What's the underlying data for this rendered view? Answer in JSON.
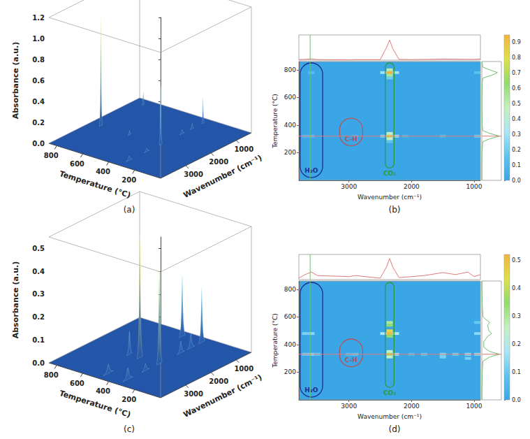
{
  "chart_data": [
    {
      "type": "surface3d",
      "panel": "(a)",
      "x_label": "Wavenumber (cm⁻¹)",
      "y_label": "Temperature (°C)",
      "z_label": "Absorbance (a.u.)",
      "xlim": [
        4000,
        400
      ],
      "xticks": [
        3000,
        2000,
        1000
      ],
      "ylim": [
        0,
        860
      ],
      "yticks": [
        200,
        400,
        600,
        800
      ],
      "zlim": [
        0,
        1.2
      ],
      "zticks": [
        {
          "value": 0,
          "label": "0.0"
        },
        0.2,
        0.4,
        0.6,
        0.8,
        {
          "value": 1,
          "label": "1.0"
        },
        1.2
      ],
      "peaks": {
        "wavenumber": [
          2350,
          2350,
          670,
          670,
          3600,
          2900,
          1500,
          1100,
          2350
        ],
        "temperature": [
          780,
          320,
          320,
          780,
          320,
          320,
          320,
          320,
          560
        ],
        "absorbance": [
          1.05,
          0.55,
          0.25,
          0.12,
          0.04,
          0.03,
          0.04,
          0.05,
          0.04
        ],
        "width": [
          60,
          60,
          50,
          50,
          120,
          100,
          100,
          80,
          60
        ]
      }
    },
    {
      "type": "heatmap",
      "panel": "(b)",
      "x_label": "Wavenumber (cm⁻¹)",
      "y_label": "Temperature (°C)",
      "xlim": [
        3800,
        900
      ],
      "xticks": [
        3000,
        2000,
        1000
      ],
      "ylim": [
        0,
        860
      ],
      "yticks": [
        200,
        400,
        600,
        800
      ],
      "cell_size": [
        100,
        20
      ],
      "cells": {
        "wavenumber": [
          2350,
          2350,
          2350,
          2250,
          2450,
          2350,
          2350,
          2350,
          2350,
          2250,
          2450,
          2350,
          3600,
          3700,
          3600,
          2900,
          2100,
          1500,
          950,
          950
        ],
        "temperature": [
          780,
          760,
          800,
          780,
          780,
          740,
          320,
          300,
          340,
          320,
          320,
          280,
          320,
          320,
          780,
          320,
          320,
          320,
          320,
          780
        ],
        "absorbance": [
          0.95,
          0.55,
          0.5,
          0.3,
          0.3,
          0.2,
          0.8,
          0.45,
          0.45,
          0.3,
          0.25,
          0.15,
          0.15,
          0.12,
          0.12,
          0.08,
          0.1,
          0.12,
          0.2,
          0.15
        ]
      },
      "color_bar": {
        "lim": [
          0,
          0.95
        ],
        "ticks": [
          {
            "value": 0,
            "label": "0.0"
          },
          0.1,
          0.2,
          0.3,
          0.4,
          0.5,
          0.6,
          0.7,
          0.8,
          0.9
        ],
        "colors": [
          "#3aa6e6",
          "#5cc4ef",
          "#a9e6f4",
          "#c6f0c0",
          "#8fdc6a",
          "#dfe04a",
          "#f2b53a"
        ]
      },
      "regions": [
        {
          "label": "H₂O",
          "color": "#1f2d8a",
          "wavenumber": [
            3780,
            3420
          ],
          "temperature": [
            20,
            850
          ]
        },
        {
          "label": "C-H",
          "color": "#b5535a",
          "wavenumber": [
            3150,
            2780
          ],
          "temperature": [
            250,
            450
          ]
        },
        {
          "label": "CO₂",
          "color": "#2e9a3a",
          "wavenumber": [
            2420,
            2280
          ],
          "temperature": [
            90,
            850
          ]
        }
      ],
      "cursor": {
        "wavenumber": 3620,
        "temperature": 320
      },
      "top_profile": {
        "wavenumber": [
          3800,
          3700,
          3600,
          3500,
          3000,
          2900,
          2500,
          2400,
          2350,
          2300,
          2200,
          2000,
          1500,
          1000,
          900
        ],
        "absorbance": [
          0.02,
          0.03,
          0.05,
          0.02,
          0.01,
          0.02,
          0.02,
          0.5,
          0.8,
          0.45,
          0.03,
          0.02,
          0.04,
          0.03,
          0.05
        ],
        "lim": [
          0,
          1
        ],
        "color": "#e07a7a"
      },
      "side_profile": {
        "temperature": [
          0,
          100,
          200,
          280,
          300,
          320,
          340,
          360,
          400,
          500,
          600,
          700,
          740,
          760,
          780,
          800,
          820,
          860
        ],
        "absorbance": [
          0,
          0,
          0.01,
          0.05,
          0.4,
          0.9,
          0.4,
          0.05,
          0.02,
          0.01,
          0.01,
          0.02,
          0.05,
          0.5,
          0.8,
          0.4,
          0.05,
          0.01
        ],
        "lim": [
          0,
          1
        ],
        "color": "#6cc06c"
      }
    },
    {
      "type": "surface3d",
      "panel": "(c)",
      "x_label": "Wavenumber (cm⁻¹)",
      "y_label": "Temperature (°C)",
      "z_label": "Absorbance (a.u.)",
      "xlim": [
        4000,
        400
      ],
      "xticks": [
        3000,
        2000,
        1000
      ],
      "ylim": [
        0,
        860
      ],
      "yticks": [
        200,
        400,
        600,
        800
      ],
      "zlim": [
        0,
        0.55
      ],
      "zticks": [
        {
          "value": 0,
          "label": "0.0"
        },
        0.1,
        0.2,
        0.3,
        0.4,
        0.5
      ],
      "peaks": {
        "wavenumber": [
          2350,
          2350,
          670,
          670,
          3600,
          3600,
          2900,
          1500,
          1100,
          2350
        ],
        "temperature": [
          480,
          330,
          480,
          330,
          330,
          480,
          330,
          330,
          330,
          560
        ],
        "absorbance": [
          0.53,
          0.42,
          0.27,
          0.24,
          0.05,
          0.04,
          0.03,
          0.05,
          0.06,
          0.1
        ],
        "width": [
          110,
          110,
          120,
          120,
          200,
          200,
          150,
          150,
          150,
          110
        ]
      }
    },
    {
      "type": "heatmap",
      "panel": "(d)",
      "x_label": "Wavenumber (cm⁻¹)",
      "y_label": "Temperature (°C)",
      "xlim": [
        3800,
        900
      ],
      "xticks": [
        3000,
        2000,
        1000
      ],
      "ylim": [
        0,
        860
      ],
      "yticks": [
        200,
        400,
        600,
        800
      ],
      "cell_size": [
        100,
        20
      ],
      "cells": {
        "wavenumber": [
          2350,
          2350,
          2350,
          2350,
          2350,
          2250,
          2450,
          2350,
          2350,
          2350,
          2250,
          3600,
          3700,
          3500,
          3600,
          3700,
          2900,
          3000,
          2000,
          1800,
          1500,
          1500,
          1300,
          1100,
          1100,
          950,
          950,
          950
        ],
        "temperature": [
          480,
          500,
          460,
          540,
          560,
          480,
          480,
          330,
          310,
          350,
          330,
          330,
          330,
          330,
          480,
          480,
          330,
          330,
          330,
          330,
          330,
          310,
          330,
          330,
          300,
          330,
          480,
          560
        ],
        "absorbance": [
          0.5,
          0.45,
          0.35,
          0.35,
          0.3,
          0.2,
          0.18,
          0.42,
          0.25,
          0.25,
          0.18,
          0.15,
          0.12,
          0.1,
          0.14,
          0.12,
          0.1,
          0.08,
          0.08,
          0.1,
          0.14,
          0.12,
          0.12,
          0.15,
          0.12,
          0.15,
          0.14,
          0.1
        ]
      },
      "color_bar": {
        "lim": [
          0,
          0.52
        ],
        "ticks": [
          {
            "value": 0,
            "label": "0.0"
          },
          0.1,
          0.2,
          0.3,
          0.4,
          0.5
        ],
        "colors": [
          "#3aa6e6",
          "#5cc4ef",
          "#a9e6f4",
          "#c6f0c0",
          "#8fdc6a",
          "#dfe04a",
          "#f2b53a"
        ]
      },
      "regions": [
        {
          "label": "H₂O",
          "color": "#1f2d8a",
          "wavenumber": [
            3780,
            3420
          ],
          "temperature": [
            20,
            850
          ]
        },
        {
          "label": "C-H",
          "color": "#b5535a",
          "wavenumber": [
            3150,
            2780
          ],
          "temperature": [
            240,
            440
          ]
        },
        {
          "label": "CO₂",
          "color": "#2e9a3a",
          "wavenumber": [
            2420,
            2280
          ],
          "temperature": [
            90,
            850
          ]
        }
      ],
      "cursor": {
        "wavenumber": 3620,
        "temperature": 330
      },
      "top_profile": {
        "wavenumber": [
          3800,
          3700,
          3600,
          3500,
          3000,
          2900,
          2500,
          2400,
          2350,
          2300,
          2200,
          2000,
          1800,
          1500,
          1300,
          1100,
          1000,
          900
        ],
        "absorbance": [
          0.03,
          0.1,
          0.15,
          0.08,
          0.06,
          0.08,
          0.03,
          0.25,
          0.42,
          0.25,
          0.04,
          0.06,
          0.08,
          0.14,
          0.1,
          0.15,
          0.06,
          0.1
        ],
        "lim": [
          0,
          0.5
        ],
        "color": "#e07a7a"
      },
      "side_profile": {
        "temperature": [
          0,
          200,
          280,
          310,
          330,
          350,
          380,
          420,
          460,
          480,
          500,
          540,
          560,
          600,
          700,
          860
        ],
        "absorbance": [
          0,
          0.01,
          0.03,
          0.2,
          0.45,
          0.2,
          0.05,
          0.05,
          0.15,
          0.25,
          0.18,
          0.15,
          0.2,
          0.03,
          0.01,
          0
        ],
        "lim": [
          0,
          0.5
        ],
        "color": "#6cc06c"
      }
    }
  ]
}
